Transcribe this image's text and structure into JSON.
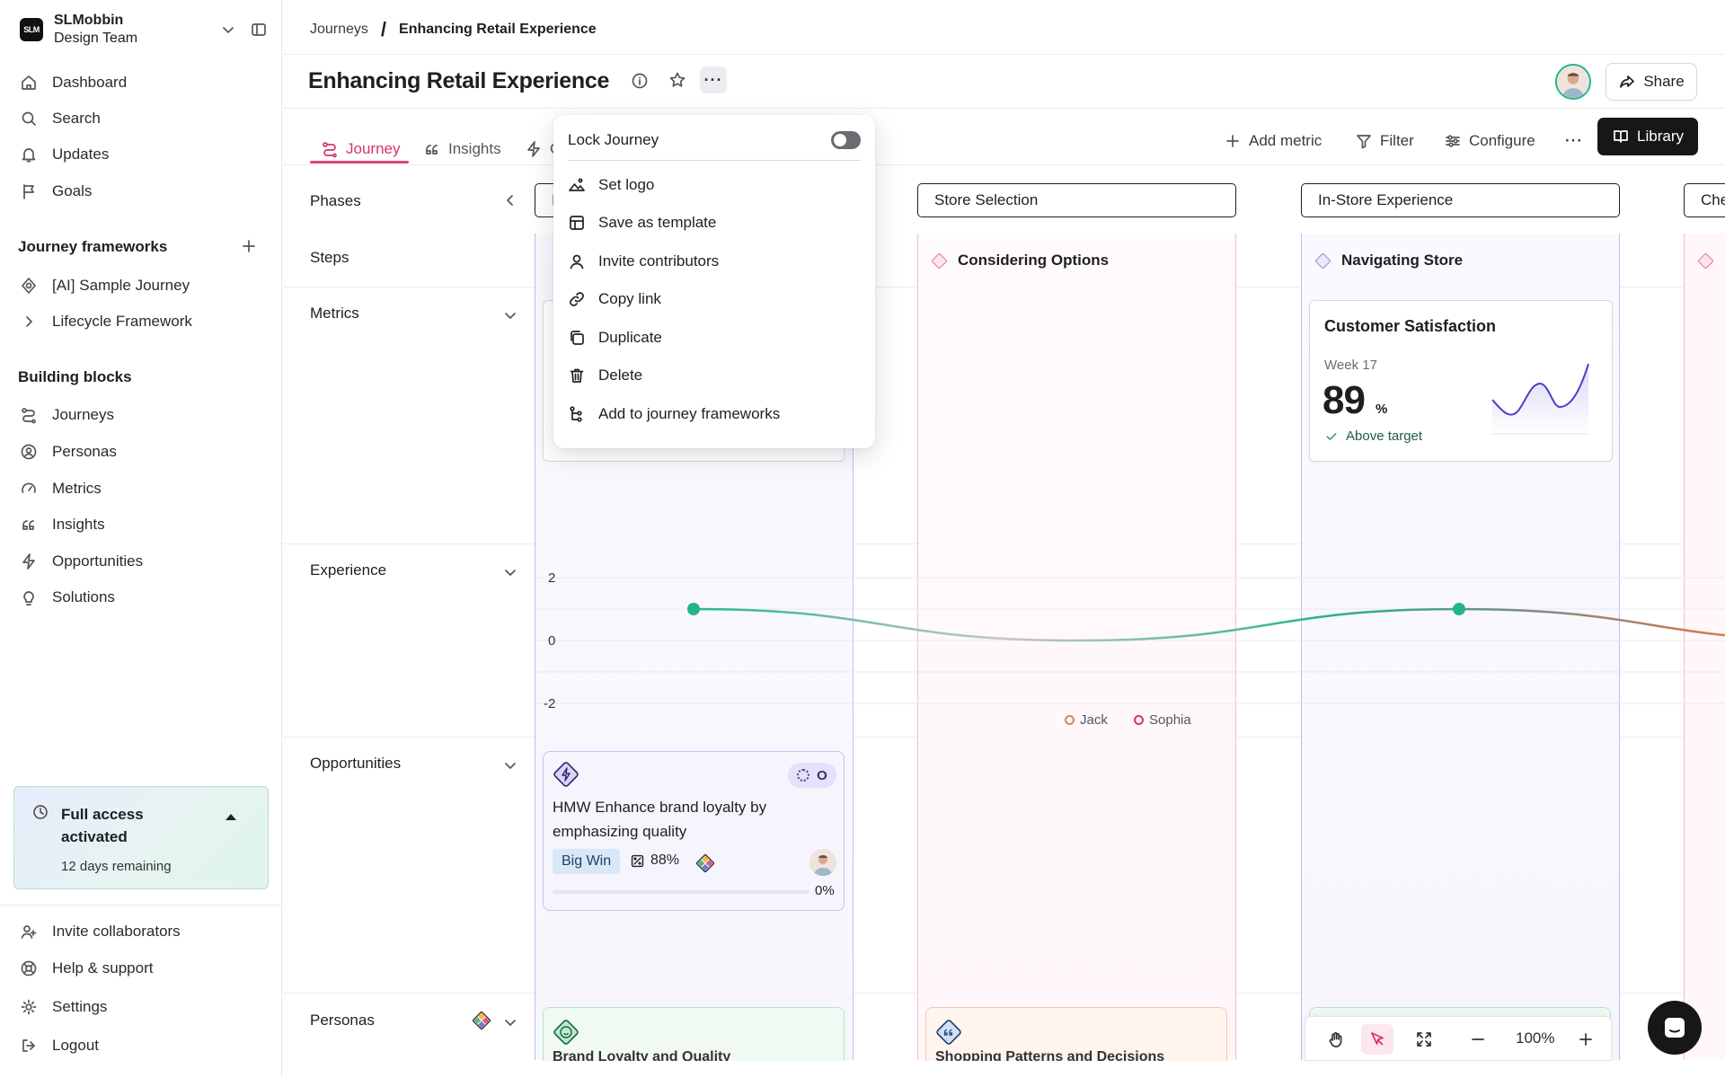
{
  "workspace": {
    "name": "SLMobbin",
    "team": "Design Team",
    "logo_text": "SLM"
  },
  "sidebar": {
    "nav": [
      {
        "label": "Dashboard",
        "icon": "home-icon"
      },
      {
        "label": "Search",
        "icon": "search-icon"
      },
      {
        "label": "Updates",
        "icon": "bell-icon"
      },
      {
        "label": "Goals",
        "icon": "flag-icon"
      }
    ],
    "frameworks_title": "Journey frameworks",
    "frameworks": [
      {
        "label": "[AI] Sample Journey",
        "icon": "ai-badge-icon"
      },
      {
        "label": "Lifecycle Framework",
        "icon": "chevron-right-icon"
      }
    ],
    "blocks_title": "Building blocks",
    "blocks": [
      {
        "label": "Journeys",
        "icon": "journey-icon"
      },
      {
        "label": "Personas",
        "icon": "persona-icon"
      },
      {
        "label": "Metrics",
        "icon": "gauge-icon"
      },
      {
        "label": "Insights",
        "icon": "quote-icon"
      },
      {
        "label": "Opportunities",
        "icon": "bolt-icon"
      },
      {
        "label": "Solutions",
        "icon": "bulb-icon"
      }
    ],
    "trial": {
      "title": "Full access activated",
      "remaining": "12 days remaining"
    },
    "footer": [
      {
        "label": "Invite collaborators",
        "icon": "user-plus-icon"
      },
      {
        "label": "Help & support",
        "icon": "help-icon"
      },
      {
        "label": "Settings",
        "icon": "gear-icon"
      },
      {
        "label": "Logout",
        "icon": "logout-icon"
      }
    ]
  },
  "breadcrumb": {
    "parent": "Journeys",
    "separator": "/",
    "current": "Enhancing Retail Experience"
  },
  "page": {
    "title": "Enhancing Retail Experience",
    "share_label": "Share"
  },
  "tabs": [
    {
      "label": "Journey",
      "active": true
    },
    {
      "label": "Insights",
      "active": false
    },
    {
      "label": "C",
      "active": false
    }
  ],
  "toolbar": {
    "add_metric": "Add metric",
    "filter": "Filter",
    "configure": "Configure",
    "library": "Library"
  },
  "rows": {
    "phases": "Phases",
    "steps": "Steps",
    "metrics": "Metrics",
    "experience": "Experience",
    "opportunities": "Opportunities",
    "personas": "Personas"
  },
  "phases": [
    {
      "label": "I",
      "bg": "#e9e5fb",
      "border": "#b7aee8"
    },
    {
      "label": "Store Selection",
      "bg": "#fbdde9",
      "border": "#f0a9c5"
    },
    {
      "label": "In-Store Experience",
      "bg": "#e9e5fb",
      "border": "#b7aee8"
    },
    {
      "label": "Che",
      "bg": "#fbdde9",
      "border": "#f0a9c5"
    }
  ],
  "steps": [
    {
      "label": "Considering Options",
      "color": "#e86c9a"
    },
    {
      "label": "Navigating Store",
      "color": "#8d84d8"
    }
  ],
  "metric_card": {
    "title": "Customer Satisfaction",
    "period": "Week 17",
    "value": "89",
    "unit": "%",
    "status": "Above target"
  },
  "experience_chart": {
    "type": "line",
    "y_ticks": [
      "2",
      "0",
      "-2"
    ],
    "ylim": [
      -2,
      2
    ],
    "points": [
      {
        "step": 1,
        "value": 1
      },
      {
        "step": 2,
        "value": 0
      },
      {
        "step": 3,
        "value": 1
      },
      {
        "step": 4,
        "value": 0
      }
    ],
    "legend": [
      {
        "name": "Jack",
        "color": "#d6845a"
      },
      {
        "name": "Sophia",
        "color": "#d1365e"
      }
    ],
    "colors": {
      "positive": "#22b58b",
      "neutral": "#bdbdbd",
      "negative": "#d9784f"
    }
  },
  "opportunity_card": {
    "status": "O",
    "title": "HMW Enhance brand loyalty by emphasizing quality",
    "badge": "Big Win",
    "confidence": "88%",
    "progress": "0%",
    "progress_value": 0
  },
  "persona_cards": [
    {
      "title": "Brand Loyalty and Quality",
      "icon": "smile-icon"
    },
    {
      "title": "Shopping Patterns and Decisions",
      "icon": "quote-icon"
    }
  ],
  "menu": {
    "lock_label": "Lock Journey",
    "lock_on": false,
    "items": [
      {
        "label": "Set logo",
        "icon": "image-icon"
      },
      {
        "label": "Save as template",
        "icon": "template-icon"
      },
      {
        "label": "Invite contributors",
        "icon": "user-icon"
      },
      {
        "label": "Copy link",
        "icon": "link-icon"
      },
      {
        "label": "Duplicate",
        "icon": "copy-icon"
      },
      {
        "label": "Delete",
        "icon": "trash-icon"
      },
      {
        "label": "Add to journey frameworks",
        "icon": "tree-icon"
      }
    ]
  },
  "canvas_tools": {
    "zoom": "100%"
  }
}
